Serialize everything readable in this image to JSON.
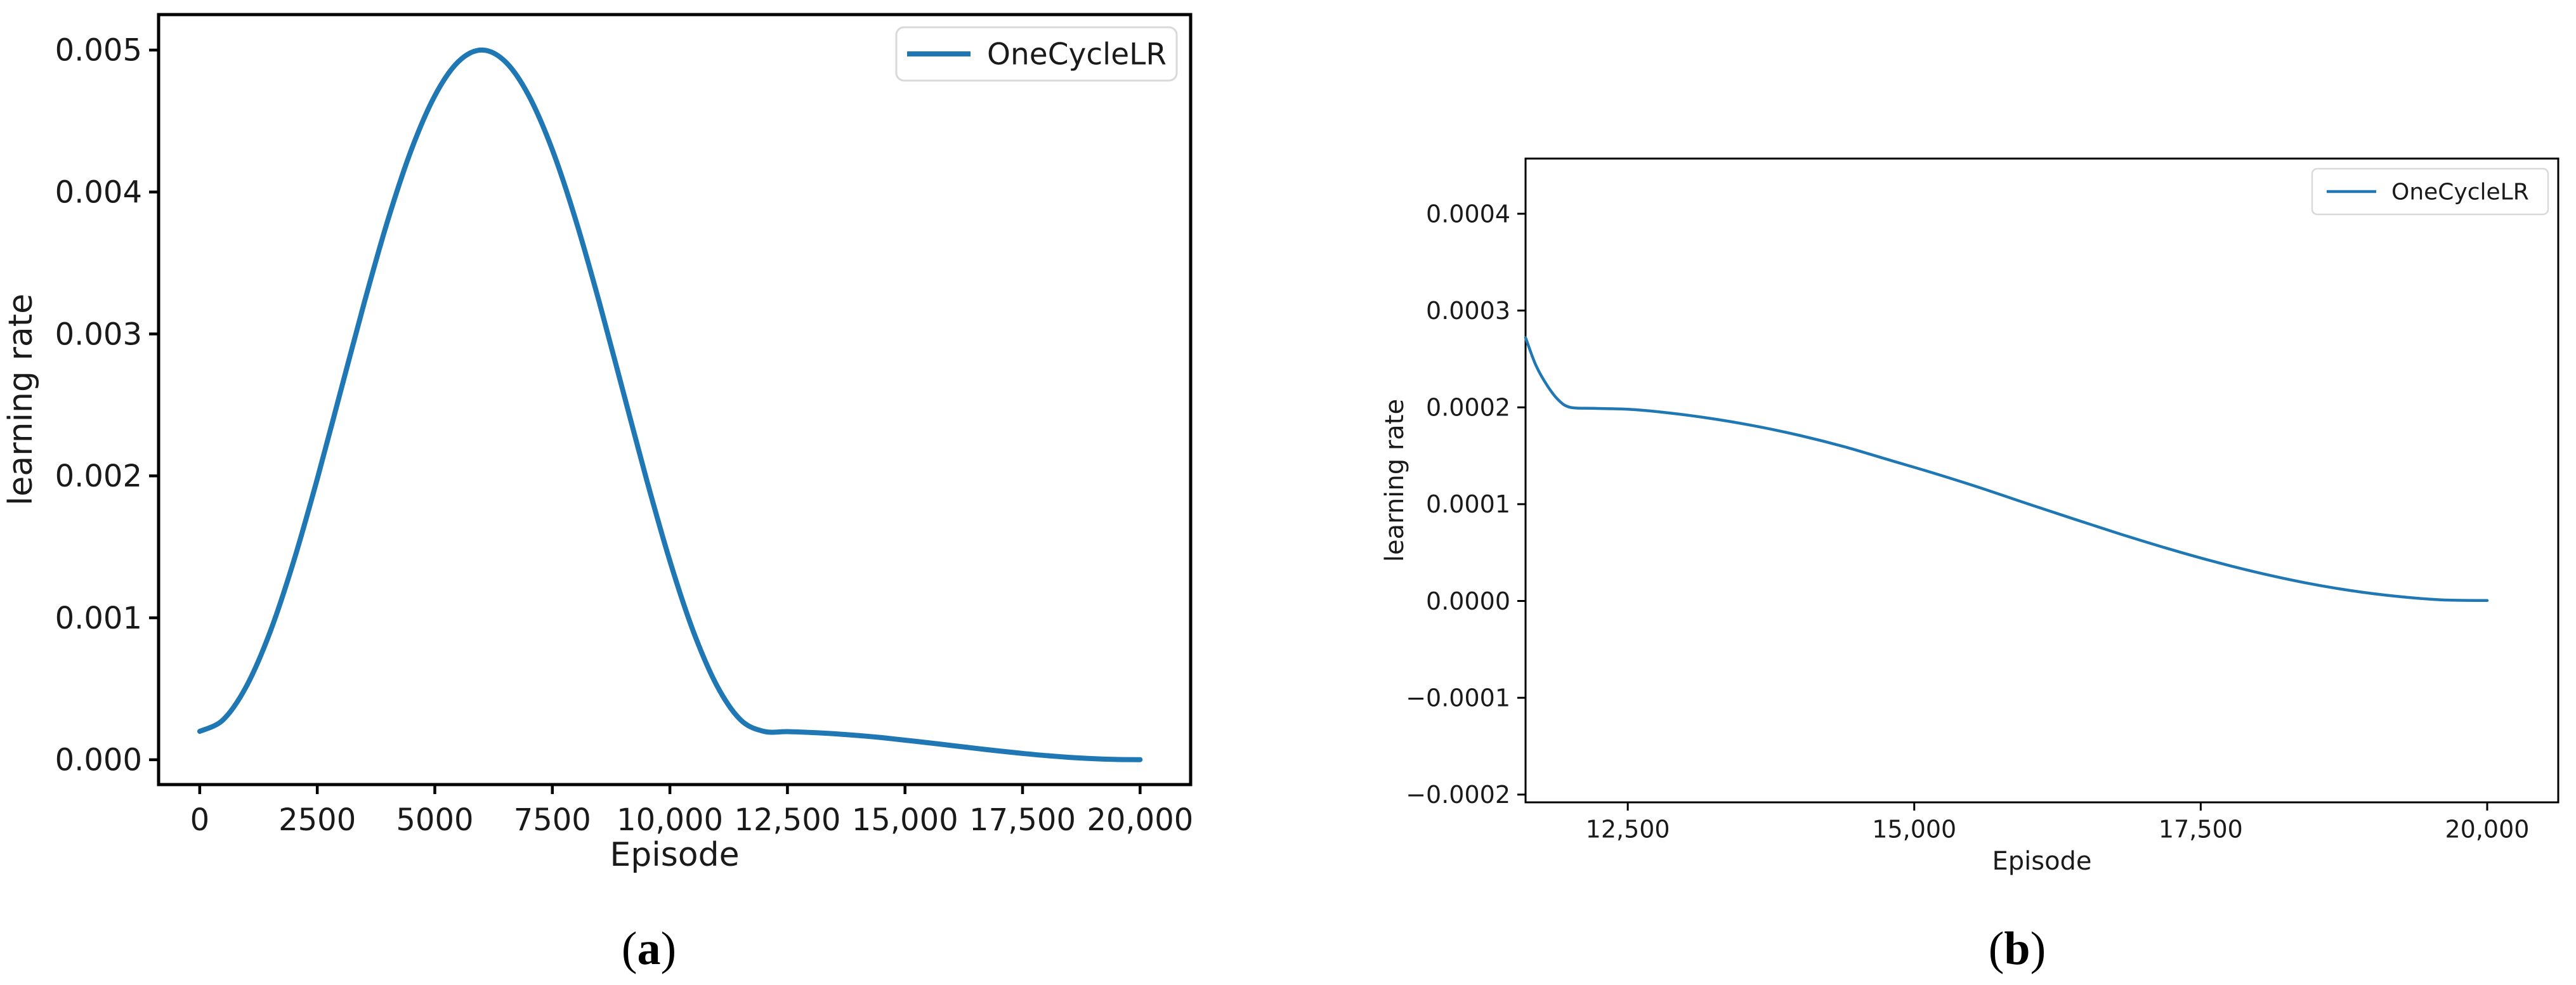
{
  "figure": {
    "background": "#ffffff",
    "captions": {
      "a": {
        "open": "(",
        "letter": "a",
        "close": ")"
      },
      "b": {
        "open": "(",
        "letter": "b",
        "close": ")"
      }
    }
  },
  "chart_data": [
    {
      "id": "a",
      "type": "line",
      "title": "",
      "xlabel": "Episode",
      "ylabel": "learning rate",
      "legend": {
        "entries": [
          "OneCycleLR"
        ],
        "position": "upper right"
      },
      "grid": false,
      "axis_color": "#000000",
      "tick_label_color": "#1a1a1a",
      "legend_border_color": "#d9d9d9",
      "xlim": [
        -875,
        21075
      ],
      "ylim": [
        -0.000175,
        0.00525
      ],
      "xticks": {
        "values": [
          0,
          2500,
          5000,
          7500,
          10000,
          12500,
          15000,
          17500,
          20000
        ],
        "labels": [
          "0",
          "2500",
          "5000",
          "7500",
          "10,000",
          "12,500",
          "15,000",
          "17,500",
          "20,000"
        ]
      },
      "yticks": {
        "values": [
          0,
          0.001,
          0.002,
          0.003,
          0.004,
          0.005
        ],
        "labels": [
          "0.000",
          "0.001",
          "0.002",
          "0.003",
          "0.004",
          "0.005"
        ]
      },
      "series": [
        {
          "name": "OneCycleLR",
          "color": "#1f77b4",
          "points": [
            [
              0,
              0.0002
            ],
            [
              500,
              0.000282
            ],
            [
              1000,
              0.000522
            ],
            [
              1500,
              0.000903
            ],
            [
              2000,
              0.0014
            ],
            [
              2500,
              0.001979
            ],
            [
              3000,
              0.0026
            ],
            [
              3500,
              0.003221
            ],
            [
              4000,
              0.0038
            ],
            [
              4500,
              0.004297
            ],
            [
              5000,
              0.004678
            ],
            [
              5500,
              0.004918
            ],
            [
              6000,
              0.005
            ],
            [
              6500,
              0.004918
            ],
            [
              7000,
              0.004678
            ],
            [
              7500,
              0.004297
            ],
            [
              8000,
              0.0038
            ],
            [
              8500,
              0.003221
            ],
            [
              9000,
              0.0026
            ],
            [
              9500,
              0.001979
            ],
            [
              10000,
              0.0014
            ],
            [
              10500,
              0.000903
            ],
            [
              11000,
              0.000522
            ],
            [
              11500,
              0.000282
            ],
            [
              12000,
              0.0002
            ],
            [
              12500,
              0.000198
            ],
            [
              13000,
              0.000192
            ],
            [
              13500,
              0.000183
            ],
            [
              14000,
              0.000171
            ],
            [
              14500,
              0.000156
            ],
            [
              15000,
              0.000138
            ],
            [
              15500,
              0.0001195
            ],
            [
              16000,
              0.0001
            ],
            [
              16500,
              8.05e-05
            ],
            [
              17000,
              6.17e-05
            ],
            [
              17500,
              4.44e-05
            ],
            [
              18000,
              2.93e-05
            ],
            [
              18500,
              1.69e-05
            ],
            [
              19000,
              7.6e-06
            ],
            [
              19500,
              1.9e-06
            ],
            [
              20000,
              5e-07
            ]
          ]
        }
      ]
    },
    {
      "id": "b",
      "type": "line",
      "title": "",
      "xlabel": "Episode",
      "ylabel": "learning rate",
      "legend": {
        "entries": [
          "OneCycleLR"
        ],
        "position": "upper right"
      },
      "grid": false,
      "axis_color": "#000000",
      "tick_label_color": "#1a1a1a",
      "legend_border_color": "#d9d9d9",
      "xlim": [
        11608,
        20620
      ],
      "ylim": [
        -0.000208,
        0.000457
      ],
      "xticks": {
        "values": [
          12500,
          15000,
          17500,
          20000
        ],
        "labels": [
          "12,500",
          "15,000",
          "17,500",
          "20,000"
        ]
      },
      "yticks": {
        "values": [
          -0.0002,
          -0.0001,
          0.0,
          0.0001,
          0.0002,
          0.0003,
          0.0004
        ],
        "labels": [
          "−0.0002",
          "−0.0001",
          "0.0000",
          "0.0001",
          "0.0002",
          "0.0003",
          "0.0004"
        ]
      },
      "series": [
        {
          "name": "OneCycleLR",
          "color": "#1f77b4",
          "points": [
            [
              11608,
              0.000272
            ],
            [
              11700,
              0.000243
            ],
            [
              11800,
              0.000222
            ],
            [
              11900,
              0.000207
            ],
            [
              12000,
              0.0002
            ],
            [
              12200,
              0.000199
            ],
            [
              12500,
              0.000198
            ],
            [
              12800,
              0.000195
            ],
            [
              13200,
              0.000189
            ],
            [
              13600,
              0.000181
            ],
            [
              14000,
              0.000171
            ],
            [
              14400,
              0.000159
            ],
            [
              14800,
              0.000145
            ],
            [
              15200,
              0.000131
            ],
            [
              15600,
              0.000116
            ],
            [
              16000,
              0.0001
            ],
            [
              16400,
              8.44e-05
            ],
            [
              16800,
              6.91e-05
            ],
            [
              17200,
              5.46e-05
            ],
            [
              17600,
              4.12e-05
            ],
            [
              18000,
              2.93e-05
            ],
            [
              18400,
              1.91e-05
            ],
            [
              18800,
              1.09e-05
            ],
            [
              19200,
              4.9e-06
            ],
            [
              19600,
              1.2e-06
            ],
            [
              20000,
              5e-07
            ]
          ]
        }
      ]
    }
  ]
}
